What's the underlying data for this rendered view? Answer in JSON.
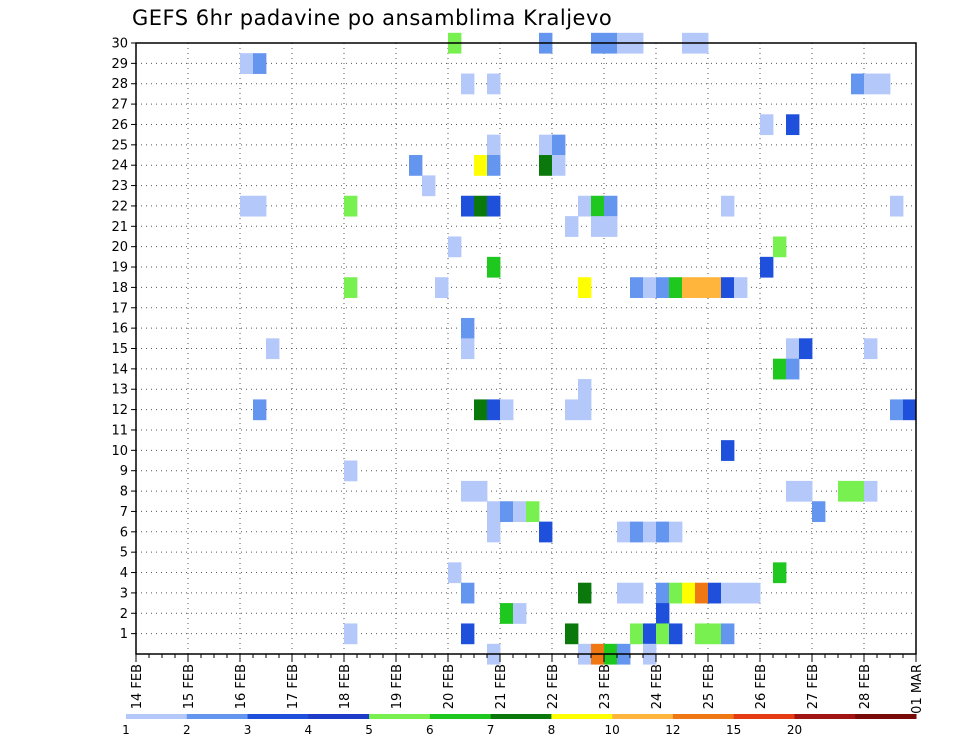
{
  "chart_data": {
    "type": "heatmap",
    "title": "GEFS 6hr padavine po ansamblima Kraljevo",
    "xlabel": "",
    "ylabel": "",
    "x_tick_labels": [
      "14 FEB",
      "15 FEB",
      "16 FEB",
      "17 FEB",
      "18 FEB",
      "19 FEB",
      "20 FEB",
      "21 FEB",
      "22 FEB",
      "23 FEB",
      "24 FEB",
      "25 FEB",
      "26 FEB",
      "27 FEB",
      "28 FEB",
      "01 MAR"
    ],
    "x_units": "6-hour steps from 14 FEB 00Z",
    "x_range": [
      0,
      60
    ],
    "y_tick_labels": [
      "1",
      "2",
      "3",
      "4",
      "5",
      "6",
      "7",
      "8",
      "9",
      "10",
      "11",
      "12",
      "13",
      "14",
      "15",
      "16",
      "17",
      "18",
      "19",
      "20",
      "21",
      "22",
      "23",
      "24",
      "25",
      "26",
      "27",
      "28",
      "29",
      "30"
    ],
    "y_range": [
      0,
      30
    ],
    "grid": true,
    "legend": {
      "placement": "bottom",
      "levels": [
        "1",
        "2",
        "3",
        "4",
        "5",
        "6",
        "7",
        "8",
        "10",
        "12",
        "15",
        "20"
      ],
      "colors": [
        "#b4c8fa",
        "#6496f0",
        "#1e50dc",
        "#1e3cc8",
        "#78f050",
        "#1ec81e",
        "#0a780a",
        "#ffff00",
        "#ffb43c",
        "#f07814",
        "#e63c14",
        "#a01414",
        "#780a0a"
      ]
    },
    "cells": [
      [
        8,
        29,
        0
      ],
      [
        9,
        29,
        1
      ],
      [
        8,
        22,
        0
      ],
      [
        9,
        22,
        0
      ],
      [
        10,
        15,
        0
      ],
      [
        9,
        12,
        1
      ],
      [
        16,
        22,
        4
      ],
      [
        16,
        18,
        4
      ],
      [
        16,
        9,
        0
      ],
      [
        16,
        1,
        0
      ],
      [
        21,
        24,
        1
      ],
      [
        22,
        23,
        0
      ],
      [
        23,
        18,
        0
      ],
      [
        24,
        30,
        4
      ],
      [
        24,
        20,
        0
      ],
      [
        24,
        4,
        0
      ],
      [
        25,
        28,
        0
      ],
      [
        25,
        22,
        2
      ],
      [
        25,
        16,
        1
      ],
      [
        25,
        15,
        0
      ],
      [
        25,
        8,
        0
      ],
      [
        25,
        3,
        1
      ],
      [
        25,
        1,
        2
      ],
      [
        26,
        24,
        7
      ],
      [
        26,
        22,
        6
      ],
      [
        26,
        12,
        6
      ],
      [
        26,
        8,
        0
      ],
      [
        27,
        28,
        0
      ],
      [
        27,
        25,
        0
      ],
      [
        27,
        24,
        1
      ],
      [
        27,
        22,
        2
      ],
      [
        27,
        19,
        5
      ],
      [
        27,
        12,
        2
      ],
      [
        27,
        7,
        0
      ],
      [
        27,
        6,
        0
      ],
      [
        27,
        0,
        0
      ],
      [
        28,
        12,
        0
      ],
      [
        28,
        7,
        1
      ],
      [
        28,
        2,
        5
      ],
      [
        29,
        7,
        0
      ],
      [
        29,
        2,
        0
      ],
      [
        30,
        7,
        4
      ],
      [
        31,
        30,
        1
      ],
      [
        31,
        25,
        0
      ],
      [
        31,
        24,
        6
      ],
      [
        31,
        6,
        2
      ],
      [
        32,
        25,
        1
      ],
      [
        32,
        24,
        0
      ],
      [
        33,
        21,
        0
      ],
      [
        33,
        12,
        0
      ],
      [
        33,
        1,
        6
      ],
      [
        34,
        22,
        0
      ],
      [
        34,
        18,
        7
      ],
      [
        34,
        13,
        0
      ],
      [
        34,
        12,
        0
      ],
      [
        34,
        3,
        6
      ],
      [
        34,
        0,
        0
      ],
      [
        35,
        30,
        1
      ],
      [
        35,
        22,
        5
      ],
      [
        35,
        21,
        0
      ],
      [
        35,
        0,
        9
      ],
      [
        36,
        30,
        1
      ],
      [
        36,
        22,
        1
      ],
      [
        36,
        21,
        0
      ],
      [
        36,
        0,
        5
      ],
      [
        37,
        30,
        0
      ],
      [
        37,
        6,
        0
      ],
      [
        37,
        3,
        0
      ],
      [
        37,
        0,
        1
      ],
      [
        38,
        30,
        0
      ],
      [
        38,
        18,
        1
      ],
      [
        38,
        6,
        1
      ],
      [
        38,
        3,
        0
      ],
      [
        38,
        1,
        4
      ],
      [
        39,
        18,
        0
      ],
      [
        39,
        6,
        0
      ],
      [
        39,
        1,
        2
      ],
      [
        39,
        0,
        0
      ],
      [
        40,
        18,
        1
      ],
      [
        40,
        6,
        1
      ],
      [
        40,
        3,
        1
      ],
      [
        40,
        2,
        2
      ],
      [
        40,
        1,
        4
      ],
      [
        41,
        18,
        5
      ],
      [
        41,
        6,
        0
      ],
      [
        41,
        3,
        4
      ],
      [
        41,
        1,
        2
      ],
      [
        42,
        30,
        0
      ],
      [
        42,
        18,
        8
      ],
      [
        42,
        3,
        7
      ],
      [
        43,
        30,
        0
      ],
      [
        43,
        18,
        8
      ],
      [
        43,
        3,
        9
      ],
      [
        43,
        1,
        4
      ],
      [
        44,
        18,
        8
      ],
      [
        44,
        3,
        2
      ],
      [
        44,
        1,
        4
      ],
      [
        45,
        22,
        0
      ],
      [
        45,
        18,
        2
      ],
      [
        45,
        10,
        2
      ],
      [
        45,
        3,
        0
      ],
      [
        45,
        1,
        1
      ],
      [
        46,
        18,
        0
      ],
      [
        46,
        3,
        0
      ],
      [
        47,
        3,
        0
      ],
      [
        48,
        26,
        0
      ],
      [
        48,
        19,
        2
      ],
      [
        49,
        20,
        4
      ],
      [
        49,
        14,
        5
      ],
      [
        49,
        4,
        5
      ],
      [
        50,
        26,
        2
      ],
      [
        50,
        15,
        0
      ],
      [
        50,
        14,
        1
      ],
      [
        50,
        8,
        0
      ],
      [
        51,
        15,
        2
      ],
      [
        51,
        8,
        0
      ],
      [
        52,
        7,
        1
      ],
      [
        54,
        8,
        4
      ],
      [
        55,
        28,
        1
      ],
      [
        55,
        8,
        4
      ],
      [
        56,
        28,
        0
      ],
      [
        56,
        15,
        0
      ],
      [
        56,
        8,
        0
      ],
      [
        57,
        28,
        0
      ],
      [
        58,
        22,
        0
      ],
      [
        58,
        12,
        1
      ],
      [
        59,
        12,
        2
      ]
    ]
  }
}
